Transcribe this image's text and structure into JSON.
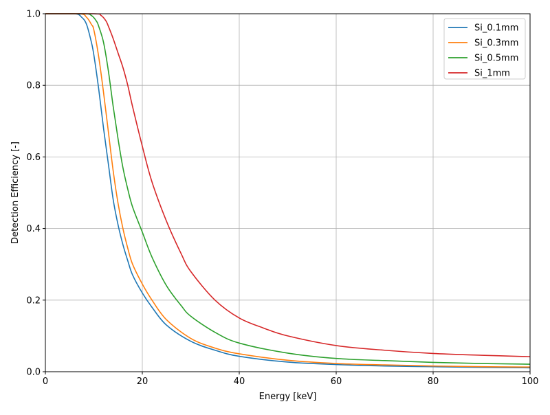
{
  "chart_data": {
    "type": "line",
    "title": "",
    "xlabel": "Energy [keV]",
    "ylabel": "Detection Efficiency [-]",
    "xlim": [
      0,
      100
    ],
    "ylim": [
      0,
      1.0
    ],
    "xticks": [
      0,
      20,
      40,
      60,
      80,
      100
    ],
    "xtick_labels": [
      "0",
      "20",
      "40",
      "60",
      "80",
      "100"
    ],
    "yticks": [
      0,
      0.2,
      0.4,
      0.6,
      0.8,
      1.0
    ],
    "ytick_labels": [
      "0.0",
      "0.2",
      "0.4",
      "0.6",
      "0.8",
      "1.0"
    ],
    "grid": true,
    "legend_position": "top-right",
    "series": [
      {
        "name": "Si_0.1mm",
        "color": "#1f77b4",
        "x": [
          0,
          6,
          7.5,
          8.5,
          9.5,
          10,
          11,
          12,
          13,
          14,
          15,
          16,
          17,
          18,
          20,
          22,
          25,
          30,
          35,
          40,
          50,
          60,
          70,
          80,
          90,
          100
        ],
        "y": [
          1.0,
          1.0,
          0.99,
          0.97,
          0.92,
          0.885,
          0.79,
          0.68,
          0.58,
          0.48,
          0.41,
          0.355,
          0.31,
          0.27,
          0.22,
          0.18,
          0.13,
          0.085,
          0.06,
          0.043,
          0.027,
          0.02,
          0.016,
          0.014,
          0.012,
          0.011
        ]
      },
      {
        "name": "Si_0.3mm",
        "color": "#ff7f0e",
        "x": [
          0,
          7,
          8.5,
          9.5,
          10,
          11,
          12,
          13,
          14,
          15,
          16,
          17,
          18,
          20,
          22,
          25,
          30,
          35,
          40,
          50,
          60,
          70,
          80,
          90,
          100
        ],
        "y": [
          1.0,
          1.0,
          0.99,
          0.97,
          0.955,
          0.88,
          0.78,
          0.67,
          0.56,
          0.47,
          0.4,
          0.345,
          0.3,
          0.245,
          0.2,
          0.145,
          0.093,
          0.066,
          0.05,
          0.032,
          0.023,
          0.019,
          0.016,
          0.014,
          0.013
        ]
      },
      {
        "name": "Si_0.5mm",
        "color": "#2ca02c",
        "x": [
          0,
          8,
          9.5,
          10.5,
          11,
          12,
          13,
          14,
          15,
          16,
          17,
          18,
          20,
          22,
          25,
          28,
          30,
          35,
          40,
          50,
          60,
          70,
          80,
          90,
          100
        ],
        "y": [
          1.0,
          1.0,
          0.995,
          0.98,
          0.965,
          0.92,
          0.84,
          0.74,
          0.65,
          0.57,
          0.51,
          0.46,
          0.39,
          0.32,
          0.24,
          0.185,
          0.155,
          0.11,
          0.08,
          0.052,
          0.037,
          0.031,
          0.026,
          0.023,
          0.021
        ]
      },
      {
        "name": "Si_1mm",
        "color": "#d62728",
        "x": [
          0,
          10,
          11.5,
          12.5,
          13,
          14,
          15,
          16,
          17,
          18,
          20,
          22,
          25,
          28,
          30,
          35,
          40,
          45,
          50,
          60,
          70,
          80,
          90,
          100
        ],
        "y": [
          1.0,
          1.0,
          0.995,
          0.98,
          0.965,
          0.93,
          0.89,
          0.85,
          0.8,
          0.74,
          0.63,
          0.53,
          0.42,
          0.33,
          0.28,
          0.2,
          0.15,
          0.122,
          0.1,
          0.073,
          0.06,
          0.051,
          0.046,
          0.042
        ]
      }
    ]
  }
}
